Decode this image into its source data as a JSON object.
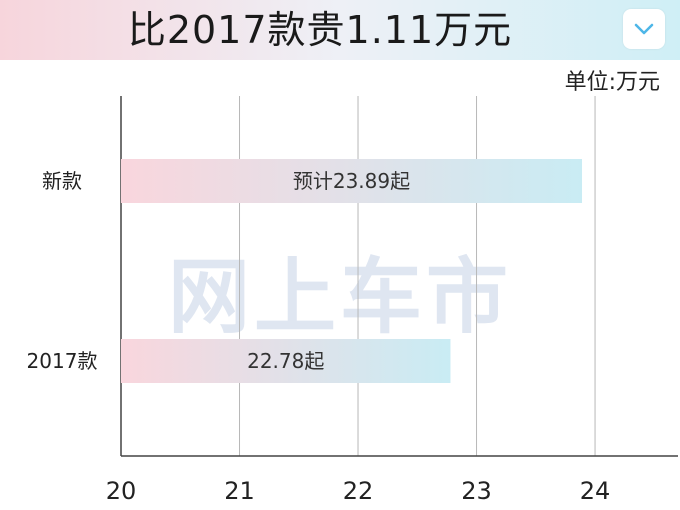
{
  "header": {
    "title": "比2017款贵1.11万元",
    "dropdown_icon": "chevron-down-icon"
  },
  "unit_label": "单位:万元",
  "watermark_text": "网上车市",
  "colors": {
    "bar_start": "#f9d6dd",
    "bar_end": "#c9ecf4",
    "chevron": "#4db6e8",
    "grid": "#b8b8b8",
    "axis": "#444444"
  },
  "chart_data": {
    "type": "bar",
    "orientation": "horizontal",
    "categories": [
      "新款",
      "2017款"
    ],
    "values": [
      23.89,
      22.78
    ],
    "data_labels": [
      "预计23.89起",
      "22.78起"
    ],
    "xlim": [
      20,
      24.7
    ],
    "xticks": [
      20,
      21,
      22,
      23,
      24
    ],
    "grid": true
  }
}
